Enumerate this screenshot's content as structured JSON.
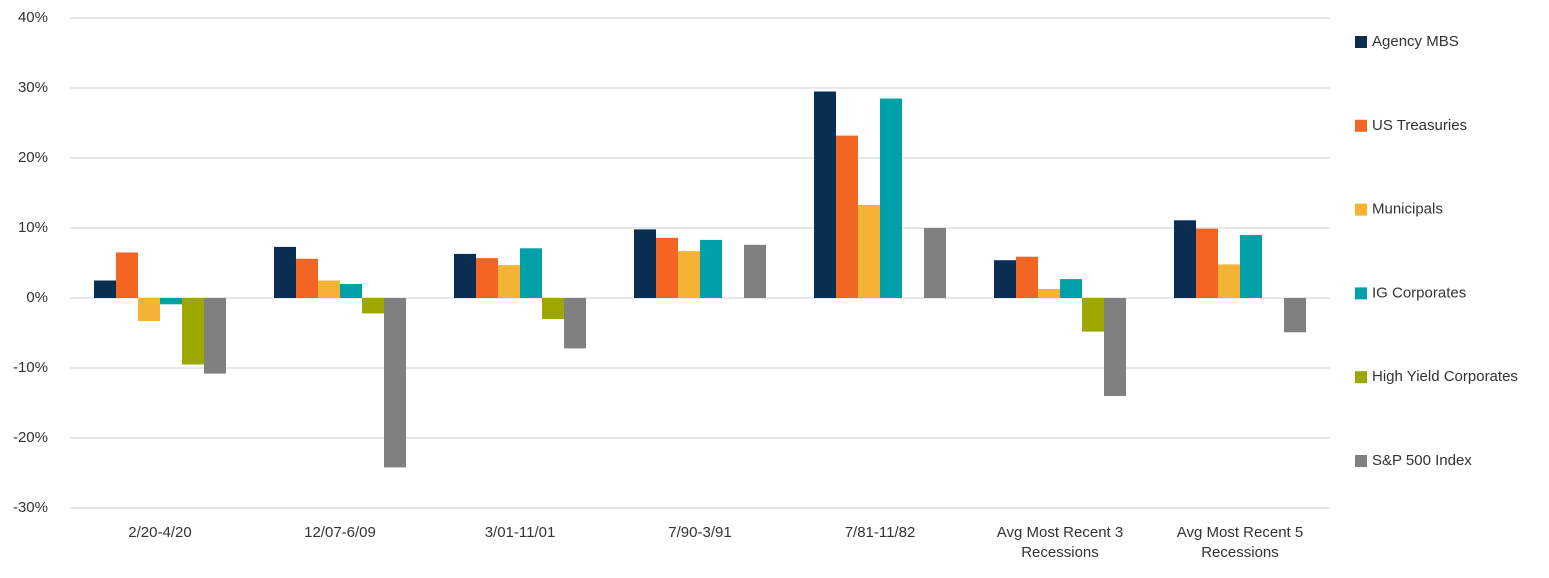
{
  "chart_data": {
    "type": "bar",
    "categories": [
      "2/20-4/20",
      "12/07-6/09",
      "3/01-11/01",
      "7/90-3/91",
      "7/81-11/82",
      "Avg Most Recent 3 Recessions",
      "Avg Most Recent 5 Recessions"
    ],
    "series": [
      {
        "name": "Agency MBS",
        "color": "#0a2d52",
        "values": [
          2.5,
          7.3,
          6.3,
          9.8,
          29.5,
          5.4,
          11.1
        ]
      },
      {
        "name": "US Treasuries",
        "color": "#f26522",
        "values": [
          6.5,
          5.6,
          5.7,
          8.6,
          23.2,
          5.9,
          9.9
        ]
      },
      {
        "name": "Municipals",
        "color": "#f5b335",
        "values": [
          -3.3,
          2.5,
          4.7,
          6.7,
          13.3,
          1.3,
          4.8
        ]
      },
      {
        "name": "IG Corporates",
        "color": "#00a0a8",
        "values": [
          -0.9,
          2.0,
          7.1,
          8.3,
          28.5,
          2.7,
          9.0
        ]
      },
      {
        "name": "High Yield Corporates",
        "color": "#9aa800",
        "values": [
          -9.5,
          -2.2,
          -3.0,
          null,
          null,
          -4.8,
          null
        ]
      },
      {
        "name": "S&P 500 Index",
        "color": "#808080",
        "values": [
          -10.8,
          -24.2,
          -7.2,
          7.6,
          10.0,
          -14.0,
          -4.9
        ]
      }
    ],
    "ylim": [
      -30,
      40
    ],
    "yticks": [
      {
        "value": -30,
        "label": "-30%"
      },
      {
        "value": -20,
        "label": "-20%"
      },
      {
        "value": -10,
        "label": "-10%"
      },
      {
        "value": 0,
        "label": "0%"
      },
      {
        "value": 10,
        "label": "10%"
      },
      {
        "value": 20,
        "label": "20%"
      },
      {
        "value": 30,
        "label": "30%"
      },
      {
        "value": 40,
        "label": "40%"
      }
    ],
    "grid": true,
    "legend": "right"
  }
}
